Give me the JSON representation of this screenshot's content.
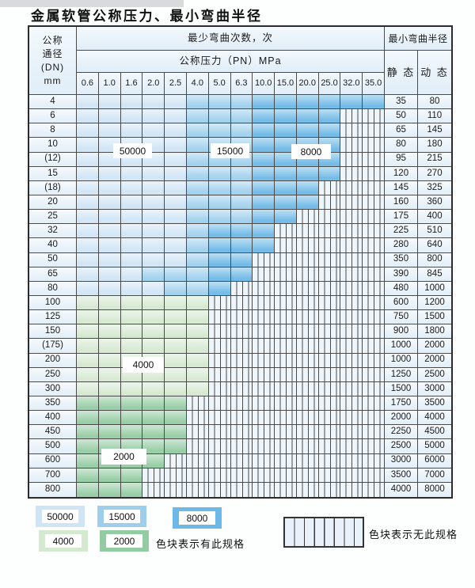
{
  "title": "金属软管公称压力、最小弯曲半径",
  "table": {
    "corner_header": "公称\n通径\n(DN)\nmm",
    "cycles_header": "最少弯曲次数，次",
    "pressure_header": "公称压力（PN）MPa",
    "pressure_columns": [
      "0.6",
      "1.0",
      "1.6",
      "2.0",
      "2.5",
      "4.0",
      "5.0",
      "6.3",
      "10.0",
      "15.0",
      "20.0",
      "25.0",
      "32.0",
      "35.0"
    ],
    "radius_header": "最小弯曲半径",
    "static_header": "静 态",
    "dynamic_header": "动 态",
    "rows": [
      {
        "dn": "4",
        "scheme": "blue",
        "light": 5,
        "mid": 8,
        "avail": 14,
        "static": "35",
        "dynamic": "80"
      },
      {
        "dn": "6",
        "scheme": "blue",
        "light": 5,
        "mid": 8,
        "avail": 12,
        "static": "50",
        "dynamic": "110"
      },
      {
        "dn": "8",
        "scheme": "blue",
        "light": 5,
        "mid": 8,
        "avail": 12,
        "static": "65",
        "dynamic": "145"
      },
      {
        "dn": "10",
        "scheme": "blue",
        "light": 5,
        "mid": 8,
        "avail": 12,
        "static": "80",
        "dynamic": "180"
      },
      {
        "dn": "(12)",
        "scheme": "blue",
        "light": 5,
        "mid": 8,
        "avail": 12,
        "static": "95",
        "dynamic": "215"
      },
      {
        "dn": "15",
        "scheme": "blue",
        "light": 5,
        "mid": 8,
        "avail": 12,
        "static": "120",
        "dynamic": "270"
      },
      {
        "dn": "(18)",
        "scheme": "blue",
        "light": 5,
        "mid": 8,
        "avail": 11,
        "static": "145",
        "dynamic": "325"
      },
      {
        "dn": "20",
        "scheme": "blue",
        "light": 5,
        "mid": 8,
        "avail": 11,
        "static": "160",
        "dynamic": "360"
      },
      {
        "dn": "25",
        "scheme": "blue",
        "light": 5,
        "mid": 8,
        "avail": 10,
        "static": "175",
        "dynamic": "400"
      },
      {
        "dn": "32",
        "scheme": "blue",
        "light": 5,
        "mid": 6,
        "avail": 9,
        "static": "225",
        "dynamic": "510"
      },
      {
        "dn": "40",
        "scheme": "blue",
        "light": 5,
        "mid": 6,
        "avail": 9,
        "static": "280",
        "dynamic": "640"
      },
      {
        "dn": "50",
        "scheme": "blue",
        "light": 5,
        "mid": 6,
        "avail": 8,
        "static": "350",
        "dynamic": "800"
      },
      {
        "dn": "65",
        "scheme": "blue",
        "light": 3,
        "mid": 6,
        "avail": 8,
        "static": "390",
        "dynamic": "845"
      },
      {
        "dn": "80",
        "scheme": "blue",
        "light": 4,
        "mid": 6,
        "avail": 7,
        "static": "480",
        "dynamic": "1000"
      },
      {
        "dn": "100",
        "scheme": "green4000",
        "avail": 6,
        "static": "600",
        "dynamic": "1200"
      },
      {
        "dn": "125",
        "scheme": "green4000",
        "avail": 6,
        "static": "750",
        "dynamic": "1500"
      },
      {
        "dn": "150",
        "scheme": "green4000",
        "avail": 6,
        "static": "900",
        "dynamic": "1800"
      },
      {
        "dn": "(175)",
        "scheme": "green4000",
        "avail": 6,
        "static": "1000",
        "dynamic": "2000"
      },
      {
        "dn": "200",
        "scheme": "green4000",
        "avail": 6,
        "static": "1000",
        "dynamic": "2000"
      },
      {
        "dn": "250",
        "scheme": "green4000",
        "avail": 6,
        "static": "1250",
        "dynamic": "2500"
      },
      {
        "dn": "300",
        "scheme": "green4000",
        "avail": 6,
        "static": "1500",
        "dynamic": "3000"
      },
      {
        "dn": "350",
        "scheme": "green2000",
        "avail": 5,
        "static": "1750",
        "dynamic": "3500"
      },
      {
        "dn": "400",
        "scheme": "green2000",
        "avail": 5,
        "static": "2000",
        "dynamic": "4000"
      },
      {
        "dn": "450",
        "scheme": "green2000",
        "avail": 5,
        "static": "2250",
        "dynamic": "4500"
      },
      {
        "dn": "500",
        "scheme": "green2000",
        "avail": 5,
        "static": "2500",
        "dynamic": "5000"
      },
      {
        "dn": "600",
        "scheme": "green2000",
        "avail": 4,
        "static": "3000",
        "dynamic": "6000"
      },
      {
        "dn": "700",
        "scheme": "green2000",
        "avail": 3,
        "static": "3500",
        "dynamic": "7000"
      },
      {
        "dn": "800",
        "scheme": "green2000",
        "avail": 3,
        "static": "4000",
        "dynamic": "8000"
      }
    ]
  },
  "cycle_labels": {
    "l50000": "50000",
    "l15000": "15000",
    "l8000": "8000",
    "l4000": "4000",
    "l2000": "2000"
  },
  "legend": {
    "swatches": [
      {
        "label": "50000",
        "type": "blue-light"
      },
      {
        "label": "15000",
        "type": "blue-mid"
      },
      {
        "label": "8000",
        "type": "blue-dark"
      },
      {
        "label": "4000",
        "type": "green-light"
      },
      {
        "label": "2000",
        "type": "green-dark"
      }
    ],
    "available_text": "色块表示有此规格",
    "unavailable_text": "色块表示无此规格"
  },
  "colors": {
    "cycles_50000": "#cfe4f5",
    "cycles_15000": "#9dcfec",
    "cycles_8000": "#6cb8e6",
    "cycles_4000": "#d5e8d0",
    "cycles_2000": "#93cba2",
    "unavailable_bg": "#eef5fb",
    "header_bg": "#e7f1f9",
    "grid_line": "#4a4a4a"
  }
}
